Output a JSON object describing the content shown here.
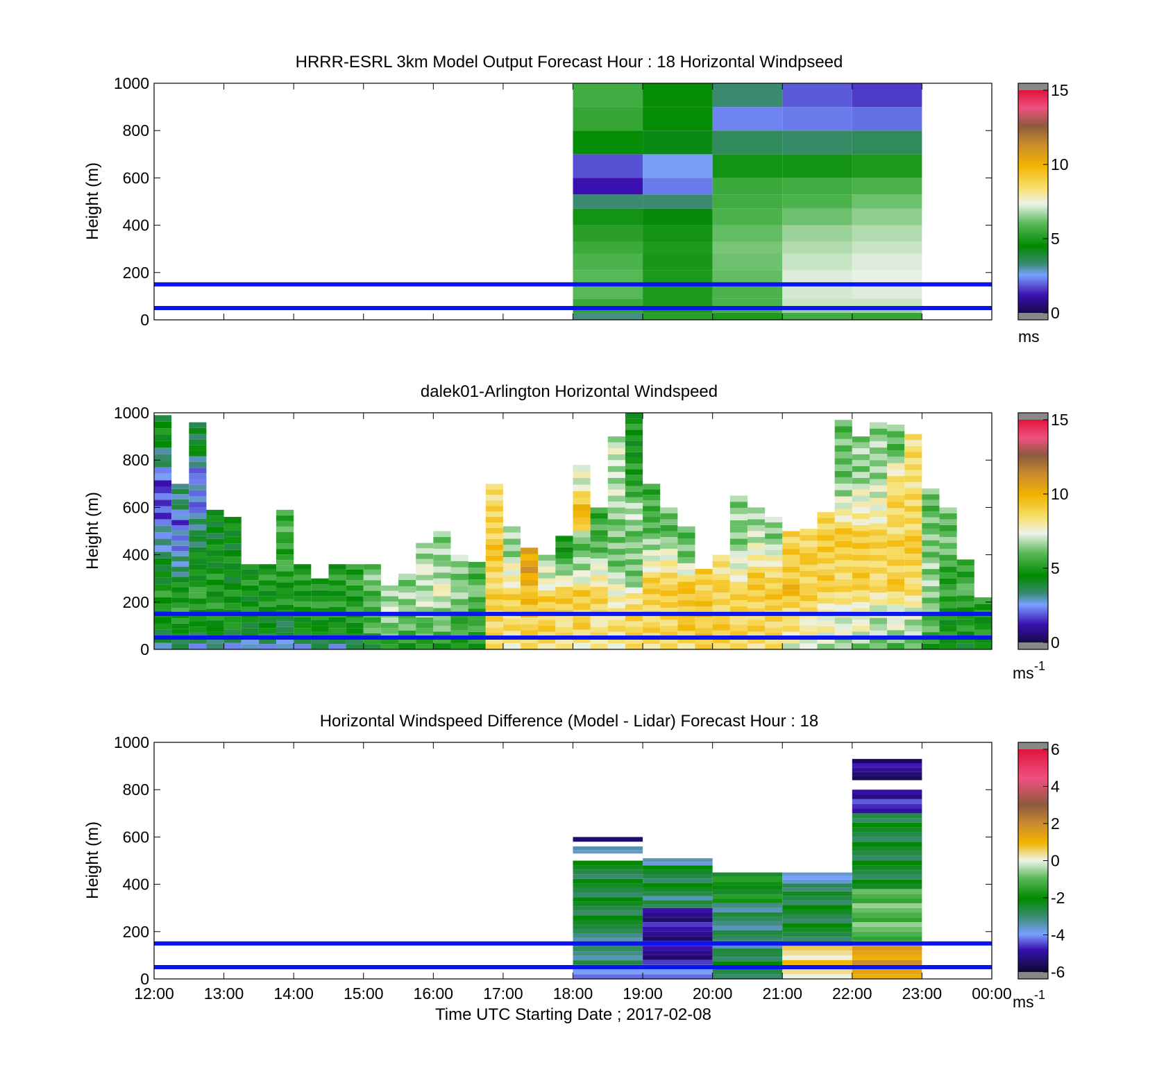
{
  "figure": {
    "xticks": [
      "12:00",
      "13:00",
      "14:00",
      "15:00",
      "16:00",
      "17:00",
      "18:00",
      "19:00",
      "20:00",
      "21:00",
      "22:00",
      "23:00",
      "00:00"
    ],
    "xlabel": "Time UTC  Starting Date ; 2017-02-08",
    "reference_lines_m": [
      50,
      150
    ],
    "reference_line_color": "#0a14f0"
  },
  "chart_data": [
    {
      "type": "heatmap",
      "title": "HRRR-ESRL 3km Model Output   Forecast Hour : 18 Horizontal Windpseed",
      "ylabel": "Height (m)",
      "ylim": [
        0,
        1000
      ],
      "yticks": [
        "0",
        "200",
        "400",
        "600",
        "800",
        "1000"
      ],
      "x_range_hours": [
        12,
        24
      ],
      "colorbar": {
        "ticks": [
          "0",
          "5",
          "10",
          "15"
        ],
        "range": [
          0,
          15
        ],
        "unit": "ms",
        "palette": "windspeed"
      },
      "columns": [
        {
          "x_start": 18,
          "x_end": 19,
          "height_levels_m": [
            30,
            50,
            90,
            150,
            210,
            280,
            330,
            400,
            470,
            530,
            600,
            700,
            800,
            900,
            1000
          ],
          "values": [
            3.2,
            5.2,
            5.5,
            6.0,
            6.0,
            5.8,
            5.5,
            5.2,
            4.8,
            3.3,
            1.2,
            1.8,
            4.6,
            5.4,
            5.6
          ]
        },
        {
          "x_start": 19,
          "x_end": 20,
          "height_levels_m": [
            30,
            50,
            150,
            210,
            280,
            330,
            400,
            470,
            530,
            600,
            700,
            800,
            900,
            1000
          ],
          "values": [
            5.2,
            4.8,
            5.0,
            5.0,
            4.9,
            5.0,
            4.8,
            4.4,
            3.3,
            2.2,
            2.6,
            4.3,
            4.6,
            4.6
          ]
        },
        {
          "x_start": 20,
          "x_end": 21,
          "height_levels_m": [
            30,
            50,
            90,
            150,
            210,
            280,
            330,
            400,
            470,
            530,
            600,
            700,
            800,
            900,
            1000
          ],
          "values": [
            5.0,
            5.6,
            5.8,
            5.8,
            6.1,
            6.2,
            6.3,
            6.1,
            5.8,
            5.6,
            5.5,
            4.8,
            3.5,
            2.3,
            3.3
          ]
        },
        {
          "x_start": 21,
          "x_end": 22,
          "height_levels_m": [
            30,
            50,
            90,
            150,
            210,
            280,
            330,
            400,
            470,
            530,
            600,
            700,
            800,
            900,
            1000
          ],
          "values": [
            5.6,
            6.6,
            7.0,
            7.1,
            7.2,
            7.0,
            6.8,
            6.6,
            6.2,
            5.8,
            5.6,
            4.8,
            3.4,
            2.2,
            1.9
          ]
        },
        {
          "x_start": 22,
          "x_end": 23,
          "height_levels_m": [
            30,
            50,
            90,
            150,
            210,
            280,
            330,
            400,
            470,
            530,
            600,
            700,
            800,
            900,
            1000
          ],
          "values": [
            5.4,
            6.6,
            7.0,
            7.2,
            7.3,
            7.2,
            7.0,
            6.8,
            6.5,
            6.2,
            5.8,
            5.0,
            3.5,
            2.1,
            1.6
          ]
        }
      ]
    },
    {
      "type": "heatmap",
      "title": "dalek01-Arlington  Horizontal Windspeed",
      "ylabel": "Height (m)",
      "ylim": [
        0,
        1000
      ],
      "yticks": [
        "0",
        "200",
        "400",
        "600",
        "800",
        "1000"
      ],
      "x_range_hours": [
        12,
        24
      ],
      "colorbar": {
        "ticks": [
          "0",
          "5",
          "10",
          "15"
        ],
        "range": [
          0,
          15
        ],
        "unit": "ms",
        "unit_superscript": "-1",
        "palette": "windspeed"
      },
      "columns": [
        {
          "x_start": 12.0,
          "x_end": 12.25,
          "top_m": 990,
          "values": [
            3.5,
            4.5,
            5.0,
            4.2,
            3.0,
            2.0,
            1.5,
            3.0,
            4.5
          ]
        },
        {
          "x_start": 12.25,
          "x_end": 12.5,
          "top_m": 700,
          "values": [
            3.5,
            5.0,
            5.2,
            4.5,
            3.0,
            2.5,
            2.0,
            3.5
          ]
        },
        {
          "x_start": 12.5,
          "x_end": 12.75,
          "top_m": 960,
          "values": [
            3.0,
            5.0,
            5.0,
            4.5,
            3.5,
            2.5,
            2.2,
            4.0
          ]
        },
        {
          "x_start": 12.75,
          "x_end": 13.0,
          "top_m": 590,
          "values": [
            3.0,
            5.0,
            5.0,
            4.8,
            4.5,
            4.2
          ]
        },
        {
          "x_start": 13.0,
          "x_end": 13.25,
          "top_m": 560,
          "values": [
            3.0,
            5.0,
            4.6,
            4.5,
            4.4
          ]
        },
        {
          "x_start": 13.25,
          "x_end": 13.5,
          "top_m": 360,
          "values": [
            2.5,
            4.5,
            4.6,
            4.8
          ]
        },
        {
          "x_start": 13.5,
          "x_end": 13.75,
          "top_m": 360,
          "values": [
            3.0,
            4.5,
            4.8,
            5.0
          ]
        },
        {
          "x_start": 13.75,
          "x_end": 14.0,
          "top_m": 590,
          "values": [
            2.5,
            4.5,
            5.0,
            5.2,
            5.6
          ]
        },
        {
          "x_start": 14.0,
          "x_end": 14.25,
          "top_m": 360,
          "values": [
            3.0,
            4.8,
            5.0,
            5.0
          ]
        },
        {
          "x_start": 14.25,
          "x_end": 14.5,
          "top_m": 300,
          "values": [
            3.5,
            5.0,
            5.0
          ]
        },
        {
          "x_start": 14.5,
          "x_end": 14.75,
          "top_m": 360,
          "values": [
            3.0,
            5.0,
            5.0,
            5.0
          ]
        },
        {
          "x_start": 14.75,
          "x_end": 15.0,
          "top_m": 360,
          "values": [
            3.5,
            5.0,
            5.0,
            5.3
          ]
        },
        {
          "x_start": 15.0,
          "x_end": 15.25,
          "top_m": 360,
          "values": [
            4.5,
            6.0,
            5.5,
            6.2
          ]
        },
        {
          "x_start": 15.25,
          "x_end": 15.5,
          "top_m": 270,
          "values": [
            5.0,
            6.5,
            6.8
          ]
        },
        {
          "x_start": 15.5,
          "x_end": 15.75,
          "top_m": 320,
          "values": [
            5.0,
            6.0,
            6.5
          ]
        },
        {
          "x_start": 15.75,
          "x_end": 16.0,
          "top_m": 450,
          "values": [
            5.0,
            6.5,
            7.0,
            6.8
          ]
        },
        {
          "x_start": 16.0,
          "x_end": 16.25,
          "top_m": 500,
          "values": [
            5.0,
            6.5,
            7.2,
            6.5
          ]
        },
        {
          "x_start": 16.25,
          "x_end": 16.5,
          "top_m": 400,
          "values": [
            4.8,
            6.0,
            6.5
          ]
        },
        {
          "x_start": 16.5,
          "x_end": 16.75,
          "top_m": 370,
          "values": [
            5.0,
            5.5,
            5.8
          ]
        },
        {
          "x_start": 16.75,
          "x_end": 17.0,
          "top_m": 700,
          "values": [
            8.5,
            9.0,
            8.8,
            9.2,
            8.6
          ]
        },
        {
          "x_start": 17.0,
          "x_end": 17.25,
          "top_m": 520,
          "values": [
            8.0,
            8.5,
            8.8,
            7.5,
            6.5
          ]
        },
        {
          "x_start": 17.25,
          "x_end": 17.5,
          "top_m": 430,
          "values": [
            8.5,
            9.0,
            9.5,
            10.5
          ]
        },
        {
          "x_start": 17.5,
          "x_end": 17.75,
          "top_m": 400,
          "values": [
            8.5,
            9.0,
            9.0,
            7.0
          ]
        },
        {
          "x_start": 17.75,
          "x_end": 18.0,
          "top_m": 480,
          "values": [
            8.0,
            8.8,
            9.0,
            5.0
          ]
        },
        {
          "x_start": 18.0,
          "x_end": 18.25,
          "top_m": 780,
          "values": [
            8.0,
            9.0,
            9.0,
            6.5,
            6.0,
            10.5,
            7.5
          ]
        },
        {
          "x_start": 18.25,
          "x_end": 18.5,
          "top_m": 600,
          "values": [
            8.0,
            8.5,
            8.8,
            6.5,
            5.5
          ]
        },
        {
          "x_start": 18.5,
          "x_end": 18.75,
          "top_m": 900,
          "values": [
            8.0,
            8.5,
            6.5,
            6.0,
            6.8,
            7.0
          ]
        },
        {
          "x_start": 18.75,
          "x_end": 19.0,
          "top_m": 1000,
          "values": [
            8.5,
            9.0,
            6.5,
            6.0,
            6.8,
            5.0,
            4.8
          ]
        },
        {
          "x_start": 19.0,
          "x_end": 19.25,
          "top_m": 700,
          "values": [
            8.5,
            9.0,
            8.8,
            6.5,
            5.5
          ]
        },
        {
          "x_start": 19.25,
          "x_end": 19.5,
          "top_m": 600,
          "values": [
            8.5,
            9.0,
            9.0,
            6.0
          ]
        },
        {
          "x_start": 19.5,
          "x_end": 19.75,
          "top_m": 520,
          "values": [
            8.5,
            9.5,
            9.0,
            6.0
          ]
        },
        {
          "x_start": 19.75,
          "x_end": 20.0,
          "top_m": 340,
          "values": [
            9.0,
            9.5,
            9.0
          ]
        },
        {
          "x_start": 20.0,
          "x_end": 20.25,
          "top_m": 400,
          "values": [
            9.0,
            9.0,
            8.5
          ]
        },
        {
          "x_start": 20.25,
          "x_end": 20.5,
          "top_m": 650,
          "values": [
            8.5,
            9.0,
            8.5,
            6.5,
            6.5
          ]
        },
        {
          "x_start": 20.5,
          "x_end": 20.75,
          "top_m": 600,
          "values": [
            8.5,
            9.0,
            9.0,
            6.8
          ]
        },
        {
          "x_start": 20.75,
          "x_end": 21.0,
          "top_m": 560,
          "values": [
            8.5,
            9.0,
            9.2,
            6.5
          ]
        },
        {
          "x_start": 21.0,
          "x_end": 21.25,
          "top_m": 500,
          "values": [
            7.5,
            8.5,
            9.5,
            9.0
          ]
        },
        {
          "x_start": 21.25,
          "x_end": 21.5,
          "top_m": 510,
          "values": [
            7.0,
            8.5,
            9.0,
            8.8
          ]
        },
        {
          "x_start": 21.5,
          "x_end": 21.75,
          "top_m": 580,
          "values": [
            7.0,
            8.0,
            9.0,
            9.0
          ]
        },
        {
          "x_start": 21.75,
          "x_end": 22.0,
          "top_m": 970,
          "values": [
            6.5,
            8.0,
            9.0,
            9.0,
            6.5,
            6.0
          ]
        },
        {
          "x_start": 22.0,
          "x_end": 22.25,
          "top_m": 900,
          "values": [
            6.5,
            8.0,
            9.0,
            9.0,
            7.5,
            6.5
          ]
        },
        {
          "x_start": 22.25,
          "x_end": 22.5,
          "top_m": 960,
          "values": [
            6.0,
            7.5,
            9.0,
            8.5,
            7.0,
            6.5
          ]
        },
        {
          "x_start": 22.5,
          "x_end": 22.75,
          "top_m": 950,
          "values": [
            6.0,
            7.5,
            9.0,
            9.0,
            8.5,
            9.0,
            6.0
          ]
        },
        {
          "x_start": 22.75,
          "x_end": 23.0,
          "top_m": 910,
          "values": [
            6.0,
            7.5,
            9.0,
            9.0,
            8.5,
            8.5
          ]
        },
        {
          "x_start": 23.0,
          "x_end": 23.25,
          "top_m": 680,
          "values": [
            5.0,
            6.5,
            6.5,
            6.0
          ]
        },
        {
          "x_start": 23.25,
          "x_end": 23.5,
          "top_m": 600,
          "values": [
            4.5,
            5.0,
            5.5,
            6.0
          ]
        },
        {
          "x_start": 23.5,
          "x_end": 23.75,
          "top_m": 380,
          "values": [
            4.5,
            5.0,
            5.5
          ]
        },
        {
          "x_start": 23.75,
          "x_end": 24.0,
          "top_m": 220,
          "values": [
            4.5,
            5.0
          ]
        }
      ]
    },
    {
      "type": "heatmap",
      "title": "Horizontal Windspeed Difference (Model - Lidar) Forecast Hour : 18",
      "ylabel": "Height (m)",
      "ylim": [
        0,
        1000
      ],
      "yticks": [
        "0",
        "200",
        "400",
        "600",
        "800",
        "1000"
      ],
      "x_range_hours": [
        12,
        24
      ],
      "colorbar": {
        "ticks": [
          "-6",
          "-4",
          "-2",
          "0",
          "2",
          "4",
          "6"
        ],
        "range": [
          -6,
          6
        ],
        "unit": "ms",
        "unit_superscript": "-1",
        "palette": "difference"
      },
      "columns": [
        {
          "x_start": 18,
          "x_end": 19,
          "segments": [
            [
              0,
              60,
              -3.8
            ],
            [
              60,
              230,
              -3.0
            ],
            [
              230,
              500,
              -2.5
            ],
            [
              530,
              560,
              -3.5
            ],
            [
              580,
              600,
              -5.0
            ]
          ]
        },
        {
          "x_start": 19,
          "x_end": 20,
          "segments": [
            [
              0,
              60,
              -3.8
            ],
            [
              60,
              300,
              -5.0
            ],
            [
              300,
              350,
              -3.0
            ],
            [
              350,
              480,
              -2.5
            ],
            [
              480,
              510,
              -3.3
            ]
          ]
        },
        {
          "x_start": 20,
          "x_end": 21,
          "segments": [
            [
              0,
              110,
              -2.5
            ],
            [
              110,
              320,
              -3.0
            ],
            [
              320,
              450,
              -2.0
            ]
          ]
        },
        {
          "x_start": 21,
          "x_end": 22,
          "segments": [
            [
              0,
              140,
              0.5
            ],
            [
              140,
              370,
              -2.5
            ],
            [
              370,
              420,
              -3.2
            ],
            [
              420,
              450,
              -3.8
            ]
          ]
        },
        {
          "x_start": 22,
          "x_end": 23,
          "segments": [
            [
              0,
              140,
              1.5
            ],
            [
              140,
              380,
              -1.0
            ],
            [
              380,
              700,
              -2.5
            ],
            [
              700,
              800,
              -4.8
            ],
            [
              840,
              930,
              -5.2
            ]
          ]
        }
      ]
    }
  ]
}
